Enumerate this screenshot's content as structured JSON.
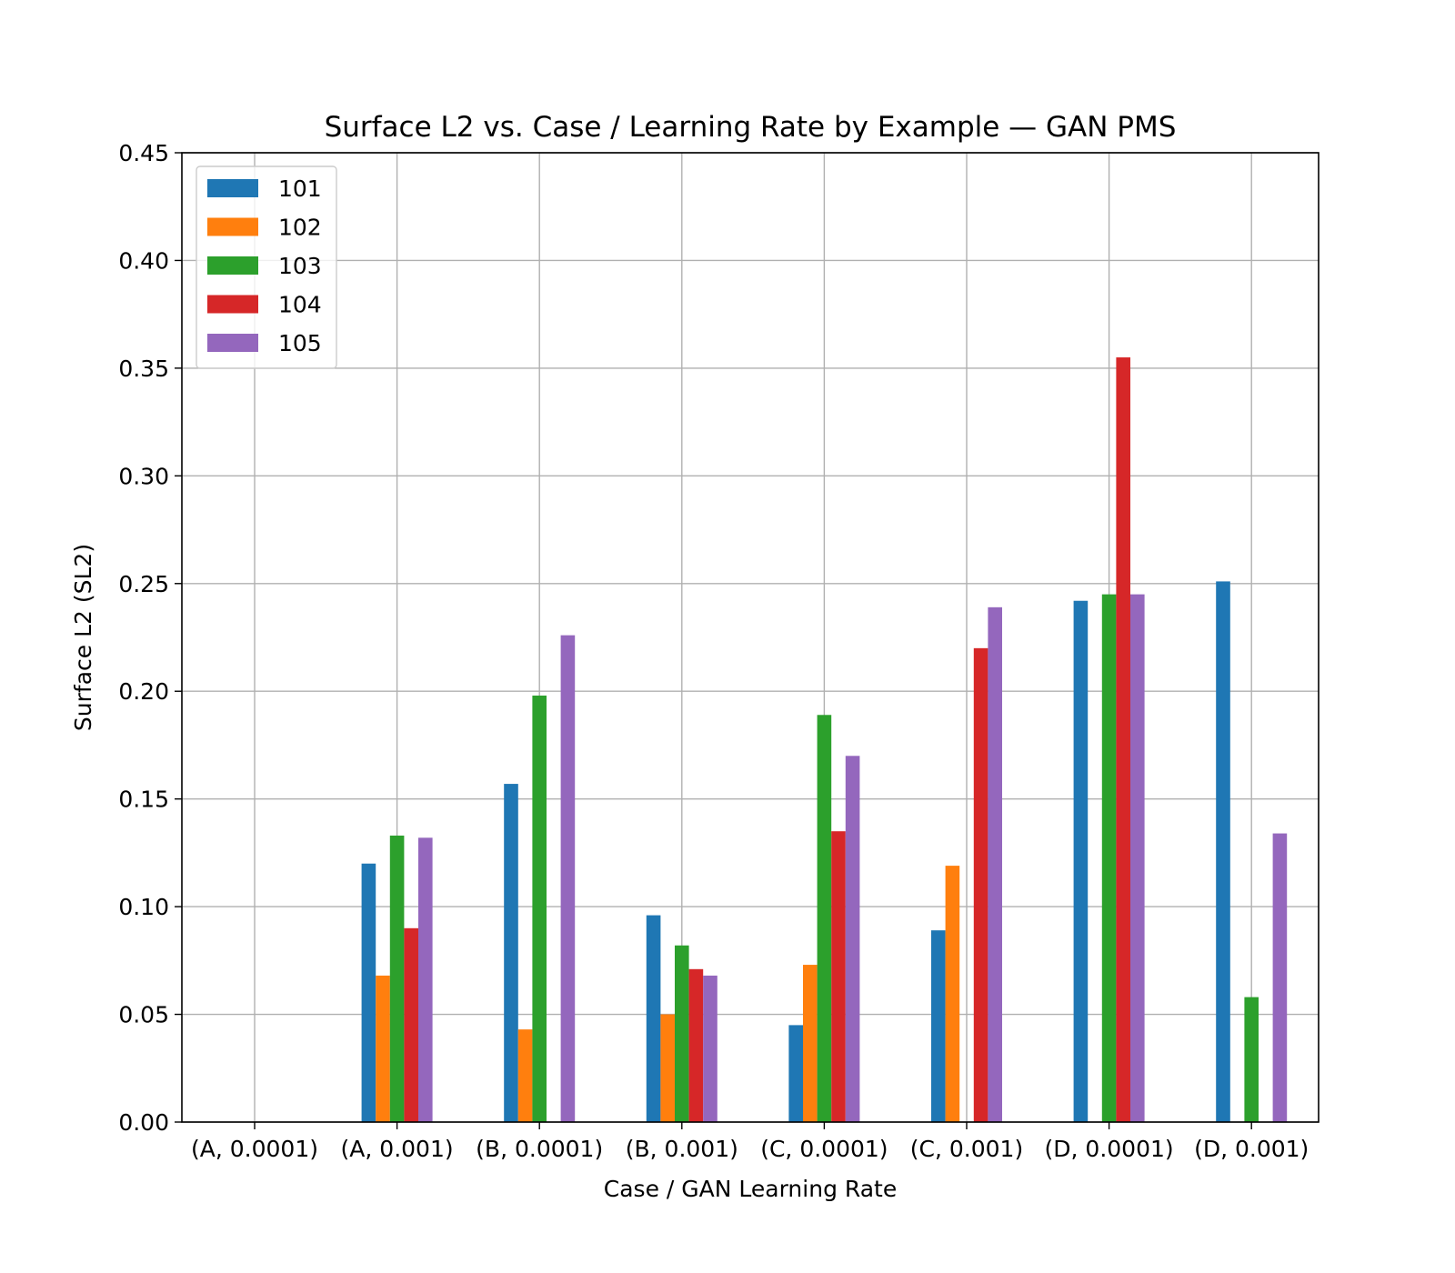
{
  "chart_data": {
    "type": "bar",
    "title": "Surface L2 vs. Case / Learning Rate by Example — GAN PMS",
    "xlabel": "Case / GAN Learning Rate",
    "ylabel": "Surface L2 (SL2)",
    "ylim": [
      0,
      0.45
    ],
    "yticks": [
      "0.00",
      "0.05",
      "0.10",
      "0.15",
      "0.20",
      "0.25",
      "0.30",
      "0.35",
      "0.40",
      "0.45"
    ],
    "grid": true,
    "legend_position": "top-left",
    "categories": [
      "(A, 0.0001)",
      "(A, 0.001)",
      "(B, 0.0001)",
      "(B, 0.001)",
      "(C, 0.0001)",
      "(C, 0.001)",
      "(D, 0.0001)",
      "(D, 0.001)"
    ],
    "series": [
      {
        "name": "101",
        "color": "#1f77b4",
        "values": [
          null,
          0.12,
          0.157,
          0.096,
          0.045,
          0.089,
          0.242,
          0.251
        ]
      },
      {
        "name": "102",
        "color": "#ff7f0e",
        "values": [
          null,
          0.068,
          0.043,
          0.05,
          0.073,
          0.119,
          null,
          null
        ]
      },
      {
        "name": "103",
        "color": "#2ca02c",
        "values": [
          null,
          0.133,
          0.198,
          0.082,
          0.189,
          null,
          0.245,
          0.058
        ]
      },
      {
        "name": "104",
        "color": "#d62728",
        "values": [
          null,
          0.09,
          null,
          0.071,
          0.135,
          0.22,
          0.355,
          null
        ]
      },
      {
        "name": "105",
        "color": "#9467bd",
        "values": [
          null,
          0.132,
          0.226,
          0.068,
          0.17,
          0.239,
          0.245,
          0.134
        ]
      }
    ]
  }
}
